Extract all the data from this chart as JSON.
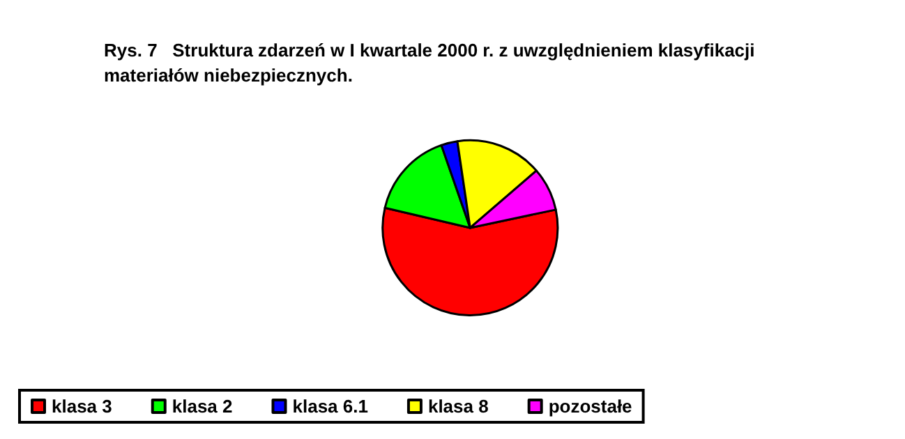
{
  "chart_data": {
    "type": "pie",
    "title": "Rys. 7   Struktura zdarzeń w I kwartale 2000 r. z uwzględnieniem klasyfikacji materiałów niebezpiecznych.",
    "categories": [
      "klasa 3",
      "klasa 2",
      "klasa 6.1",
      "klasa 8",
      "pozostałe"
    ],
    "values": [
      57,
      16,
      3,
      16,
      8
    ],
    "colors": [
      "#ff0000",
      "#00ff00",
      "#0000ff",
      "#ffff00",
      "#ff00ff"
    ],
    "legend": "bottom left"
  }
}
